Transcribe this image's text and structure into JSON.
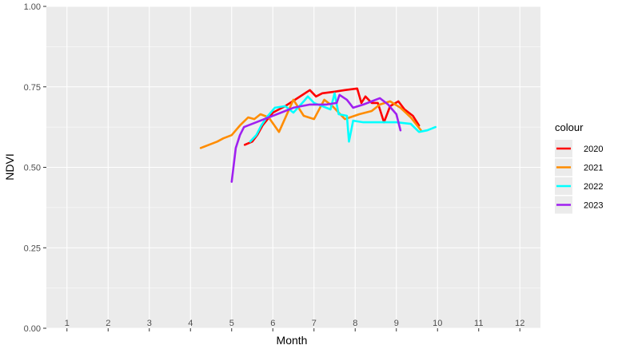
{
  "chart_data": {
    "type": "line",
    "xlabel": "Month",
    "ylabel": "NDVI",
    "ylim": [
      0,
      1
    ],
    "y_ticks": [
      "0.00",
      "0.25",
      "0.50",
      "0.75",
      "1.00"
    ],
    "x_categories": [
      "1",
      "2",
      "3",
      "4",
      "5",
      "6",
      "7",
      "8",
      "9",
      "10",
      "11",
      "12"
    ],
    "legend_title": "colour",
    "legend_position": "right",
    "grid": true,
    "series": [
      {
        "name": "2020",
        "color": "#ff0000",
        "points": [
          [
            5.32,
            0.57
          ],
          [
            5.5,
            0.58
          ],
          [
            5.62,
            0.6
          ],
          [
            5.75,
            0.63
          ],
          [
            6.0,
            0.67
          ],
          [
            6.3,
            0.69
          ],
          [
            6.6,
            0.715
          ],
          [
            6.9,
            0.74
          ],
          [
            7.05,
            0.72
          ],
          [
            7.2,
            0.73
          ],
          [
            7.5,
            0.735
          ],
          [
            7.75,
            0.74
          ],
          [
            8.05,
            0.745
          ],
          [
            8.15,
            0.7
          ],
          [
            8.25,
            0.72
          ],
          [
            8.4,
            0.7
          ],
          [
            8.55,
            0.7
          ],
          [
            8.7,
            0.64
          ],
          [
            8.85,
            0.69
          ],
          [
            9.05,
            0.705
          ],
          [
            9.2,
            0.68
          ],
          [
            9.4,
            0.66
          ],
          [
            9.55,
            0.63
          ]
        ]
      },
      {
        "name": "2021",
        "color": "#ff8c00",
        "points": [
          [
            4.25,
            0.56
          ],
          [
            4.45,
            0.57
          ],
          [
            4.65,
            0.58
          ],
          [
            4.8,
            0.59
          ],
          [
            5.0,
            0.6
          ],
          [
            5.2,
            0.63
          ],
          [
            5.4,
            0.655
          ],
          [
            5.55,
            0.65
          ],
          [
            5.7,
            0.665
          ],
          [
            5.9,
            0.655
          ],
          [
            6.15,
            0.61
          ],
          [
            6.5,
            0.71
          ],
          [
            6.75,
            0.66
          ],
          [
            7.0,
            0.65
          ],
          [
            7.25,
            0.71
          ],
          [
            7.45,
            0.69
          ],
          [
            7.75,
            0.65
          ],
          [
            8.1,
            0.665
          ],
          [
            8.4,
            0.675
          ],
          [
            8.6,
            0.695
          ],
          [
            8.85,
            0.705
          ],
          [
            9.1,
            0.685
          ],
          [
            9.35,
            0.655
          ],
          [
            9.6,
            0.615
          ]
        ]
      },
      {
        "name": "2022",
        "color": "#00ffff",
        "points": [
          [
            5.45,
            0.58
          ],
          [
            5.6,
            0.6
          ],
          [
            5.72,
            0.63
          ],
          [
            5.85,
            0.655
          ],
          [
            6.05,
            0.685
          ],
          [
            6.3,
            0.69
          ],
          [
            6.5,
            0.67
          ],
          [
            6.75,
            0.705
          ],
          [
            6.85,
            0.72
          ],
          [
            7.0,
            0.7
          ],
          [
            7.2,
            0.69
          ],
          [
            7.4,
            0.68
          ],
          [
            7.5,
            0.73
          ],
          [
            7.6,
            0.665
          ],
          [
            7.8,
            0.66
          ],
          [
            7.85,
            0.58
          ],
          [
            7.95,
            0.645
          ],
          [
            8.2,
            0.64
          ],
          [
            8.6,
            0.64
          ],
          [
            9.0,
            0.64
          ],
          [
            9.35,
            0.635
          ],
          [
            9.55,
            0.61
          ],
          [
            9.75,
            0.615
          ],
          [
            9.95,
            0.625
          ]
        ]
      },
      {
        "name": "2023",
        "color": "#a020f0",
        "points": [
          [
            5.0,
            0.455
          ],
          [
            5.1,
            0.56
          ],
          [
            5.2,
            0.6
          ],
          [
            5.3,
            0.625
          ],
          [
            5.6,
            0.64
          ],
          [
            5.9,
            0.655
          ],
          [
            6.2,
            0.67
          ],
          [
            6.5,
            0.685
          ],
          [
            6.9,
            0.695
          ],
          [
            7.3,
            0.695
          ],
          [
            7.55,
            0.7
          ],
          [
            7.62,
            0.725
          ],
          [
            7.8,
            0.71
          ],
          [
            7.95,
            0.685
          ],
          [
            8.2,
            0.695
          ],
          [
            8.4,
            0.705
          ],
          [
            8.6,
            0.715
          ],
          [
            8.8,
            0.695
          ],
          [
            8.9,
            0.68
          ],
          [
            9.0,
            0.665
          ],
          [
            9.1,
            0.615
          ]
        ]
      }
    ]
  }
}
